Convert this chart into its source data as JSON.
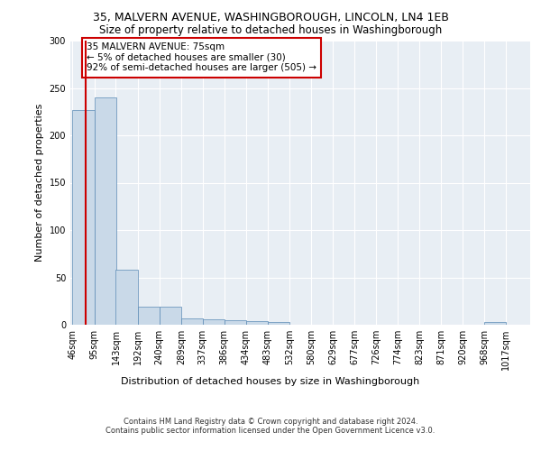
{
  "title_line1": "35, MALVERN AVENUE, WASHINGBOROUGH, LINCOLN, LN4 1EB",
  "title_line2": "Size of property relative to detached houses in Washingborough",
  "xlabel": "Distribution of detached houses by size in Washingborough",
  "ylabel": "Number of detached properties",
  "bin_labels": [
    "46sqm",
    "95sqm",
    "143sqm",
    "192sqm",
    "240sqm",
    "289sqm",
    "337sqm",
    "386sqm",
    "434sqm",
    "483sqm",
    "532sqm",
    "580sqm",
    "629sqm",
    "677sqm",
    "726sqm",
    "774sqm",
    "823sqm",
    "871sqm",
    "920sqm",
    "968sqm",
    "1017sqm"
  ],
  "bin_edges": [
    46,
    95,
    143,
    192,
    240,
    289,
    337,
    386,
    434,
    483,
    532,
    580,
    629,
    677,
    726,
    774,
    823,
    871,
    920,
    968,
    1017
  ],
  "bar_heights": [
    227,
    240,
    58,
    19,
    19,
    7,
    6,
    5,
    4,
    3,
    0,
    0,
    0,
    0,
    0,
    0,
    0,
    0,
    0,
    3,
    0
  ],
  "bar_color": "#c9d9e8",
  "bar_edge_color": "#5a8ab5",
  "property_value": 75,
  "property_line_color": "#cc0000",
  "annotation_text": "35 MALVERN AVENUE: 75sqm\n← 5% of detached houses are smaller (30)\n92% of semi-detached houses are larger (505) →",
  "annotation_box_color": "#ffffff",
  "annotation_box_edge": "#cc0000",
  "ylim": [
    0,
    300
  ],
  "yticks": [
    0,
    50,
    100,
    150,
    200,
    250,
    300
  ],
  "background_color": "#e8eef4",
  "footer_line1": "Contains HM Land Registry data © Crown copyright and database right 2024.",
  "footer_line2": "Contains public sector information licensed under the Open Government Licence v3.0.",
  "title_fontsize": 9,
  "subtitle_fontsize": 8.5,
  "axis_label_fontsize": 8,
  "tick_fontsize": 7,
  "annotation_fontsize": 7.5
}
